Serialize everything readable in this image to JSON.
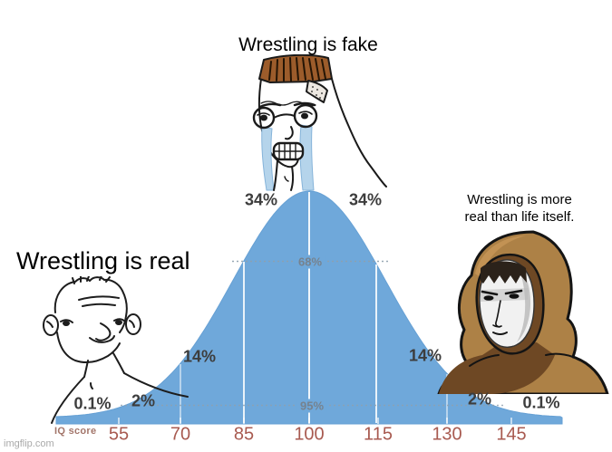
{
  "watermark": "imgflip.com",
  "captions": {
    "top": "Wrestling is fake",
    "left": "Wrestling is real",
    "right": [
      "Wrestling is more",
      "real than life itself."
    ]
  },
  "characters": {
    "left": "brainlet-wojak",
    "middle": "crying-nojak-glasses",
    "right": "hooded-wojak"
  },
  "chart_data": {
    "type": "area",
    "title": "IQ bell curve (normal distribution) meme",
    "xlabel": "IQ score",
    "x_ticks": [
      "55",
      "70",
      "85",
      "100",
      "115",
      "130",
      "145"
    ],
    "mean": 100,
    "sd": 15,
    "segment_percents": [
      "0.1%",
      "2%",
      "14%",
      "34%",
      "34%",
      "14%",
      "2%",
      "0.1%"
    ],
    "coverage": [
      {
        "label": "68%",
        "range": "85-115"
      },
      {
        "label": "95%",
        "range": "70-130"
      }
    ],
    "legend": "none",
    "grid": "white sigma separators inside curve, dotted coverage lines",
    "colors": {
      "curve_fill": "#6fa8da",
      "tick_text": "#a85a50",
      "percent_text": "#3d3d3d",
      "coverage_text": "#76828e",
      "dotted_line": "#8fa0ad"
    }
  }
}
